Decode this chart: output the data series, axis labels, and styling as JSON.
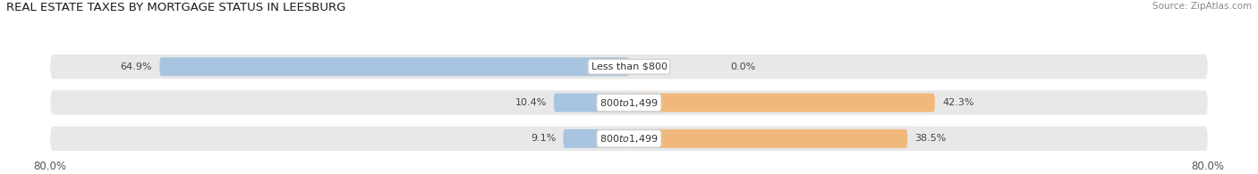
{
  "title": "REAL ESTATE TAXES BY MORTGAGE STATUS IN LEESBURG",
  "source": "Source: ZipAtlas.com",
  "rows": [
    {
      "label": "Less than $800",
      "without_mortgage": 64.9,
      "with_mortgage": 0.0
    },
    {
      "label": "$800 to $1,499",
      "without_mortgage": 10.4,
      "with_mortgage": 42.3
    },
    {
      "label": "$800 to $1,499",
      "without_mortgage": 9.1,
      "with_mortgage": 38.5
    }
  ],
  "x_min": -80.0,
  "x_max": 80.0,
  "color_without": "#a8c4e0",
  "color_with": "#f0b87a",
  "bg_row": "#e8e8e8"
}
